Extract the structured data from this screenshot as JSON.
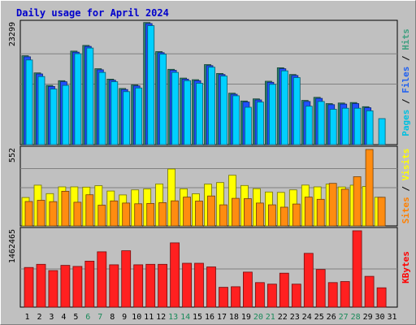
{
  "chart_data": {
    "type": "bar",
    "title": "Daily usage for April 2024",
    "categories": [
      "1",
      "2",
      "3",
      "4",
      "5",
      "6",
      "7",
      "8",
      "9",
      "10",
      "11",
      "12",
      "13",
      "14",
      "15",
      "16",
      "17",
      "18",
      "19",
      "20",
      "21",
      "22",
      "23",
      "24",
      "25",
      "26",
      "27",
      "28",
      "29",
      "30",
      "31"
    ],
    "weekend_days": [
      6,
      7,
      13,
      14,
      20,
      21,
      27,
      28
    ],
    "panels": [
      {
        "id": "hits",
        "ymax": 23299,
        "ymax_label": "23299",
        "grid_fractions": [
          0.5,
          0.75
        ],
        "right_label": [
          {
            "text": "Pages",
            "color": "#00c0e0"
          },
          {
            "text": " / ",
            "color": "#000000"
          },
          {
            "text": "Files",
            "color": "#2060f0"
          },
          {
            "text": " / ",
            "color": "#000000"
          },
          {
            "text": "Hits",
            "color": "#40a080"
          }
        ],
        "series": [
          {
            "name": "Hits",
            "color": "#2e8b6e",
            "values": [
              17100,
              13800,
              11400,
              12300,
              18000,
              19100,
              14600,
              12600,
              10800,
              11500,
              23500,
              17900,
              14500,
              12800,
              12500,
              15400,
              13700,
              9900,
              8400,
              8800,
              12200,
              14800,
              13500,
              8500,
              9100,
              7900,
              8000,
              8100,
              7300,
              null,
              null
            ]
          },
          {
            "name": "Files",
            "color": "#2050ff",
            "values": [
              16900,
              13600,
              11200,
              12100,
              17800,
              18900,
              14400,
              12400,
              10600,
              11300,
              23300,
              17700,
              14300,
              12600,
              12300,
              15200,
              13500,
              9700,
              8200,
              8600,
              12000,
              14600,
              13300,
              8300,
              8900,
              7700,
              7800,
              7900,
              7100,
              null,
              null
            ]
          },
          {
            "name": "Pages",
            "color": "#00d0ff",
            "values": [
              16300,
              13100,
              10700,
              11400,
              17500,
              18600,
              13900,
              12100,
              10200,
              10900,
              22900,
              17400,
              13900,
              12300,
              11800,
              14900,
              13200,
              9400,
              7200,
              8200,
              11600,
              14200,
              12900,
              7400,
              8300,
              6800,
              7000,
              7000,
              6500,
              5000,
              null
            ]
          }
        ]
      },
      {
        "id": "visits",
        "ymax": 552,
        "ymax_label": "552",
        "grid_fractions": [
          0.5,
          0.75
        ],
        "right_label": [
          {
            "text": "Sites",
            "color": "#ff8000"
          },
          {
            "text": " / ",
            "color": "#000000"
          },
          {
            "text": "Visits",
            "color": "#ffff00"
          }
        ],
        "series": [
          {
            "name": "Visits",
            "color": "#ffff00",
            "values": [
              205,
              294,
              233,
              282,
              282,
              280,
              290,
              252,
              224,
              260,
              267,
              303,
              411,
              268,
              232,
              302,
              313,
              366,
              292,
              269,
              245,
              242,
              260,
              295,
              282,
              302,
              281,
              294,
              285,
              207,
              null
            ]
          },
          {
            "name": "Sites",
            "color": "#ff8c10",
            "values": [
              176,
              185,
              175,
              250,
              171,
              225,
              150,
              180,
              165,
              160,
              162,
              168,
              181,
              208,
              179,
              216,
              152,
              199,
              197,
              165,
              152,
              135,
              158,
              208,
              192,
              307,
              265,
              355,
              552,
              207,
              null
            ]
          }
        ]
      },
      {
        "id": "kbytes",
        "ymax": 1462465,
        "ymax_label": "1462465",
        "grid_fractions": [
          0.5
        ],
        "right_label": [
          {
            "text": "KBytes",
            "color": "#ff0000"
          }
        ],
        "series": [
          {
            "name": "KBytes",
            "color": "#ff2020",
            "values": [
              760000,
              820000,
              700000,
              800000,
              780000,
              880000,
              1060000,
              810000,
              1080000,
              810000,
              820000,
              820000,
              1230000,
              840000,
              840000,
              770000,
              380000,
              390000,
              670000,
              470000,
              440000,
              650000,
              440000,
              1030000,
              720000,
              470000,
              490000,
              1462465,
              590000,
              370000,
              null
            ]
          }
        ]
      }
    ]
  }
}
